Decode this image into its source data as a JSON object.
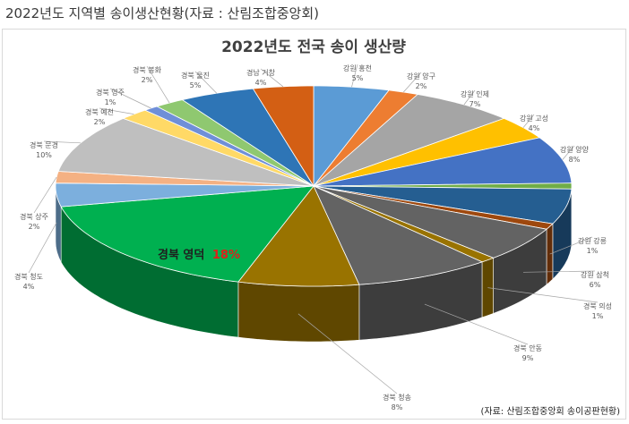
{
  "page": {
    "heading": "2022년도 지역별 송이생산현황(자료 : 산림조합중앙회)"
  },
  "source_note": "(자료: 산림조합중앙회 송이공판현황)",
  "chart_data": {
    "type": "pie",
    "style": "3d",
    "title": "2022년도 전국 송이 생산량",
    "highlight": {
      "region": "경북 영덕",
      "value_label": "18%"
    },
    "slices": [
      {
        "name": "강원 홍천",
        "value_label": "5%",
        "value": 5,
        "color": "#5b9bd5"
      },
      {
        "name": "강원 양구",
        "value_label": "2%",
        "value": 2,
        "color": "#ed7d31"
      },
      {
        "name": "강원 인제",
        "value_label": "7%",
        "value": 7,
        "color": "#a5a5a5"
      },
      {
        "name": "강원 고성",
        "value_label": "4%",
        "value": 4,
        "color": "#ffc000"
      },
      {
        "name": "강원 양양",
        "value_label": "8%",
        "value": 8,
        "color": "#4472c4"
      },
      {
        "name": "",
        "value_label": "",
        "value": 1,
        "color": "#70ad47"
      },
      {
        "name": "",
        "value_label": "",
        "value": 6,
        "color": "#255e91"
      },
      {
        "name": "강원 강릉",
        "value_label": "1%",
        "value": 1,
        "color": "#9e480e"
      },
      {
        "name": "강원 삼척",
        "value_label": "6%",
        "value": 6,
        "color": "#636363"
      },
      {
        "name": "경북 의성",
        "value_label": "1%",
        "value": 1,
        "color": "#997300"
      },
      {
        "name": "경북 안동",
        "value_label": "9%",
        "value": 9,
        "color": "#636363"
      },
      {
        "name": "경북 청송",
        "value_label": "8%",
        "value": 8,
        "color": "#997300"
      },
      {
        "name": "경북 영덕",
        "value_label": "18%",
        "value": 18,
        "color": "#00b050"
      },
      {
        "name": "경북 청도",
        "value_label": "4%",
        "value": 4,
        "color": "#7cafdd"
      },
      {
        "name": "경북 상주",
        "value_label": "2%",
        "value": 2,
        "color": "#f4b183"
      },
      {
        "name": "경북 문경",
        "value_label": "10%",
        "value": 10,
        "color": "#bfbfbf"
      },
      {
        "name": "경북 예천",
        "value_label": "2%",
        "value": 2,
        "color": "#ffd966"
      },
      {
        "name": "경북 영주",
        "value_label": "1%",
        "value": 1,
        "color": "#6f8fd8"
      },
      {
        "name": "경북 봉화",
        "value_label": "2%",
        "value": 2,
        "color": "#8fc870"
      },
      {
        "name": "경북 울진",
        "value_label": "5%",
        "value": 5,
        "color": "#2e75b6"
      },
      {
        "name": "경남 거창",
        "value_label": "4%",
        "value": 4,
        "color": "#d35f14"
      }
    ]
  }
}
